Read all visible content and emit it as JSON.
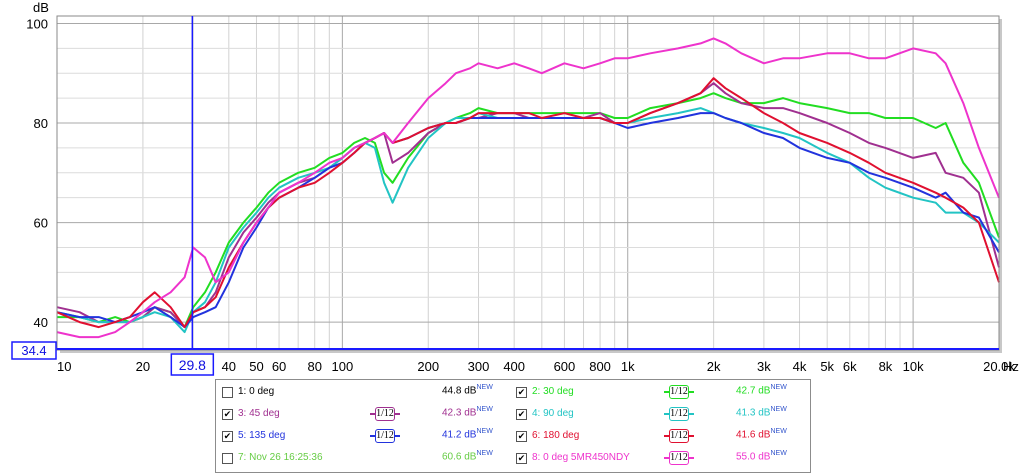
{
  "chart_data": {
    "type": "line",
    "x_scale": "log",
    "xlim": [
      10,
      20000
    ],
    "ylim": [
      34.4,
      101.5
    ],
    "y_unit": "dB",
    "x_unit": "Hz",
    "grid": true,
    "x_major_ticks": [
      10,
      100,
      1000,
      10000
    ],
    "x_tick_labels": [
      {
        "v": 10,
        "t": "10"
      },
      {
        "v": 20,
        "t": "20"
      },
      {
        "v": 40,
        "t": "40"
      },
      {
        "v": 50,
        "t": "50"
      },
      {
        "v": 60,
        "t": "60"
      },
      {
        "v": 80,
        "t": "80"
      },
      {
        "v": 100,
        "t": "100"
      },
      {
        "v": 200,
        "t": "200"
      },
      {
        "v": 300,
        "t": "300"
      },
      {
        "v": 400,
        "t": "400"
      },
      {
        "v": 600,
        "t": "600"
      },
      {
        "v": 800,
        "t": "800"
      },
      {
        "v": 1000,
        "t": "1k"
      },
      {
        "v": 2000,
        "t": "2k"
      },
      {
        "v": 3000,
        "t": "3k"
      },
      {
        "v": 4000,
        "t": "4k"
      },
      {
        "v": 5000,
        "t": "5k"
      },
      {
        "v": 6000,
        "t": "6k"
      },
      {
        "v": 8000,
        "t": "8k"
      },
      {
        "v": 10000,
        "t": "10k"
      },
      {
        "v": 20000,
        "t": "20.0k"
      }
    ],
    "y_ticks": [
      40,
      60,
      80,
      100
    ],
    "cursor": {
      "x": 29.8,
      "x_label": "29.8",
      "y": 34.4,
      "y_label": "34.4",
      "color": "#1a1aff"
    },
    "series": [
      {
        "name": "2: 30 deg",
        "color": "#22dd22",
        "x": [
          10,
          12,
          14,
          16,
          18,
          20,
          22,
          25,
          28,
          30,
          33,
          36,
          40,
          45,
          50,
          55,
          60,
          70,
          80,
          90,
          100,
          110,
          120,
          130,
          140,
          150,
          170,
          200,
          230,
          250,
          280,
          300,
          350,
          400,
          450,
          500,
          600,
          700,
          800,
          900,
          1000,
          1200,
          1500,
          1800,
          2000,
          2200,
          2500,
          3000,
          3500,
          4000,
          5000,
          6000,
          7000,
          8000,
          10000,
          12000,
          13000,
          15000,
          17000,
          20000
        ],
        "y": [
          41,
          41,
          40,
          41,
          40,
          41,
          43,
          42,
          39,
          43,
          46,
          50,
          56,
          60,
          63,
          66,
          68,
          70,
          71,
          73,
          74,
          76,
          77,
          76,
          70,
          68,
          73,
          78,
          80,
          81,
          82,
          83,
          82,
          82,
          82,
          82,
          82,
          82,
          82,
          81,
          81,
          83,
          84,
          85,
          86,
          85,
          84,
          84,
          85,
          84,
          83,
          82,
          82,
          81,
          81,
          79,
          80,
          72,
          68,
          57
        ]
      },
      {
        "name": "3: 45 deg",
        "color": "#a03090",
        "x": [
          10,
          12,
          14,
          16,
          18,
          20,
          22,
          25,
          28,
          30,
          33,
          36,
          40,
          45,
          50,
          55,
          60,
          70,
          80,
          90,
          100,
          110,
          120,
          130,
          140,
          150,
          170,
          200,
          230,
          250,
          280,
          300,
          350,
          400,
          450,
          500,
          600,
          700,
          800,
          900,
          1000,
          1200,
          1500,
          1800,
          2000,
          2200,
          2500,
          3000,
          3500,
          4000,
          5000,
          6000,
          7000,
          8000,
          10000,
          12000,
          13000,
          15000,
          17000,
          20000
        ],
        "y": [
          43,
          42,
          40,
          40,
          40,
          41,
          43,
          42,
          39,
          42,
          43,
          46,
          53,
          58,
          61,
          64,
          66,
          68,
          69,
          71,
          73,
          75,
          76,
          77,
          78,
          72,
          74,
          78,
          80,
          80,
          81,
          81,
          82,
          82,
          81,
          81,
          81,
          81,
          82,
          80,
          80,
          82,
          84,
          86,
          88,
          86,
          84,
          83,
          83,
          82,
          80,
          78,
          76,
          75,
          73,
          74,
          70,
          69,
          66,
          51
        ]
      },
      {
        "name": "4: 90 deg",
        "color": "#22c4c4",
        "x": [
          10,
          12,
          14,
          16,
          18,
          20,
          22,
          25,
          28,
          30,
          33,
          36,
          40,
          45,
          50,
          55,
          60,
          70,
          80,
          90,
          100,
          110,
          120,
          130,
          140,
          150,
          170,
          200,
          230,
          250,
          280,
          300,
          350,
          400,
          450,
          500,
          600,
          700,
          800,
          900,
          1000,
          1200,
          1500,
          1800,
          2000,
          2200,
          2500,
          3000,
          3500,
          4000,
          5000,
          6000,
          7000,
          8000,
          10000,
          12000,
          13000,
          15000,
          17000,
          20000
        ],
        "y": [
          42,
          41,
          40,
          40,
          40,
          41,
          42,
          41,
          38,
          42,
          44,
          48,
          55,
          59,
          62,
          65,
          67,
          69,
          70,
          71,
          73,
          75,
          76,
          75,
          68,
          64,
          71,
          77,
          80,
          81,
          81,
          82,
          81,
          81,
          81,
          81,
          81,
          81,
          81,
          80,
          80,
          81,
          82,
          83,
          82,
          81,
          80,
          79,
          78,
          77,
          74,
          72,
          69,
          67,
          65,
          64,
          62,
          62,
          60,
          56
        ]
      },
      {
        "name": "5: 135 deg",
        "color": "#2233dd",
        "x": [
          10,
          12,
          14,
          16,
          18,
          20,
          22,
          25,
          28,
          30,
          33,
          36,
          40,
          45,
          50,
          55,
          60,
          70,
          80,
          90,
          100,
          110,
          120,
          130,
          140,
          150,
          170,
          200,
          230,
          250,
          280,
          300,
          350,
          400,
          450,
          500,
          600,
          700,
          800,
          900,
          1000,
          1200,
          1500,
          1800,
          2000,
          2200,
          2500,
          3000,
          3500,
          4000,
          5000,
          6000,
          7000,
          8000,
          10000,
          12000,
          13000,
          15000,
          17000,
          20000
        ],
        "y": [
          42,
          41,
          41,
          40,
          41,
          42,
          43,
          41,
          39,
          41,
          42,
          43,
          48,
          55,
          59,
          63,
          65,
          67,
          69,
          71,
          72,
          74,
          76,
          77,
          78,
          76,
          77,
          79,
          80,
          80,
          81,
          81,
          81,
          81,
          81,
          81,
          81,
          81,
          81,
          80,
          79,
          80,
          81,
          82,
          82,
          81,
          80,
          78,
          77,
          75,
          73,
          72,
          70,
          69,
          67,
          65,
          66,
          62,
          61,
          54
        ]
      },
      {
        "name": "6: 180 deg",
        "color": "#e01030",
        "x": [
          10,
          12,
          14,
          16,
          18,
          20,
          22,
          25,
          28,
          30,
          33,
          36,
          40,
          45,
          50,
          55,
          60,
          70,
          80,
          90,
          100,
          110,
          120,
          130,
          140,
          150,
          170,
          200,
          230,
          250,
          280,
          300,
          350,
          400,
          450,
          500,
          600,
          700,
          800,
          900,
          1000,
          1200,
          1500,
          1800,
          2000,
          2200,
          2500,
          3000,
          3500,
          4000,
          5000,
          6000,
          7000,
          8000,
          10000,
          12000,
          13000,
          15000,
          17000,
          20000
        ],
        "y": [
          42,
          40,
          39,
          40,
          41,
          44,
          46,
          43,
          39,
          42,
          43,
          45,
          51,
          56,
          60,
          63,
          65,
          67,
          68,
          70,
          72,
          74,
          76,
          77,
          78,
          76,
          77,
          79,
          80,
          80,
          81,
          82,
          82,
          82,
          82,
          81,
          82,
          81,
          81,
          80,
          80,
          82,
          84,
          86,
          89,
          87,
          85,
          82,
          80,
          78,
          76,
          74,
          72,
          70,
          68,
          66,
          65,
          63,
          60,
          48
        ]
      },
      {
        "name": "8: 0 deg 5MR450NDY",
        "color": "#ee33cc",
        "x": [
          10,
          12,
          14,
          16,
          18,
          20,
          22,
          25,
          28,
          30,
          33,
          36,
          40,
          45,
          50,
          55,
          60,
          70,
          80,
          90,
          100,
          110,
          120,
          130,
          140,
          150,
          170,
          200,
          230,
          250,
          280,
          300,
          350,
          400,
          450,
          500,
          600,
          700,
          800,
          900,
          1000,
          1200,
          1500,
          1800,
          2000,
          2200,
          2500,
          3000,
          3500,
          4000,
          5000,
          6000,
          7000,
          8000,
          10000,
          12000,
          13000,
          15000,
          17000,
          20000
        ],
        "y": [
          38,
          37,
          37,
          38,
          40,
          42,
          44,
          46,
          49,
          55,
          53,
          48,
          50,
          56,
          60,
          63,
          66,
          68,
          70,
          72,
          73,
          75,
          76,
          77,
          78,
          76,
          80,
          85,
          88,
          90,
          91,
          92,
          91,
          92,
          91,
          90,
          92,
          91,
          92,
          93,
          93,
          94,
          95,
          96,
          97,
          96,
          94,
          92,
          93,
          93,
          94,
          94,
          93,
          93,
          95,
          94,
          92,
          84,
          75,
          65
        ]
      }
    ]
  },
  "legend": {
    "items": [
      {
        "label": "1: 0 deg",
        "color": "#000000",
        "checked": false,
        "level": "44.8 dB",
        "badge": "NEW",
        "smoothing": false
      },
      {
        "label": "2: 30 deg",
        "color": "#22dd22",
        "checked": true,
        "level": "42.7 dB",
        "badge": "NEW",
        "smoothing": true
      },
      {
        "label": "3: 45 deg",
        "color": "#a03090",
        "checked": true,
        "level": "42.3 dB",
        "badge": "NEW",
        "smoothing": true
      },
      {
        "label": "4: 90 deg",
        "color": "#22c4c4",
        "checked": true,
        "level": "41.3 dB",
        "badge": "NEW",
        "smoothing": true
      },
      {
        "label": "5: 135 deg",
        "color": "#2233dd",
        "checked": true,
        "level": "41.2 dB",
        "badge": "NEW",
        "smoothing": true
      },
      {
        "label": "6: 180 deg",
        "color": "#e01030",
        "checked": true,
        "level": "41.6 dB",
        "badge": "NEW",
        "smoothing": true
      },
      {
        "label": "7: Nov 26 16:25:36",
        "color": "#66cc44",
        "checked": false,
        "level": "60.6 dB",
        "badge": "NEW",
        "smoothing": false
      },
      {
        "label": "8: 0 deg 5MR450NDY",
        "color": "#ee33cc",
        "checked": true,
        "level": "55.0 dB",
        "badge": "NEW",
        "smoothing": true
      }
    ],
    "smoothing_text": "1/12"
  }
}
